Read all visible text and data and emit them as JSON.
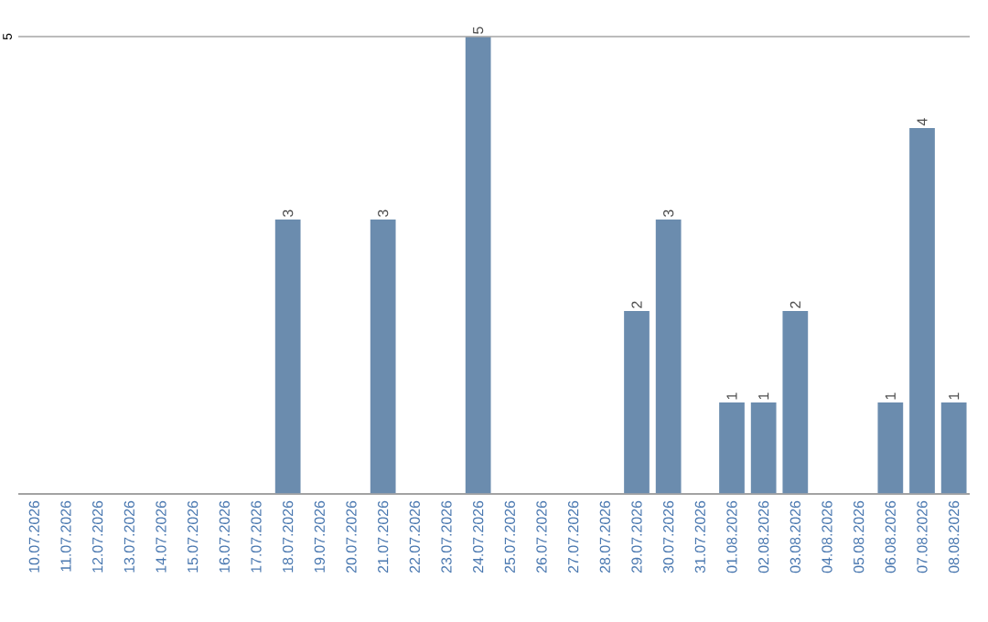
{
  "chart_data": {
    "type": "bar",
    "categories": [
      "10.07.2026",
      "11.07.2026",
      "12.07.2026",
      "13.07.2026",
      "14.07.2026",
      "15.07.2026",
      "16.07.2026",
      "17.07.2026",
      "18.07.2026",
      "19.07.2026",
      "20.07.2026",
      "21.07.2026",
      "22.07.2026",
      "23.07.2026",
      "24.07.2026",
      "25.07.2026",
      "26.07.2026",
      "27.07.2026",
      "28.07.2026",
      "29.07.2026",
      "30.07.2026",
      "31.07.2026",
      "01.08.2026",
      "02.08.2026",
      "03.08.2026",
      "04.08.2026",
      "05.08.2026",
      "06.08.2026",
      "07.08.2026",
      "08.08.2026"
    ],
    "values": [
      0,
      0,
      0,
      0,
      0,
      0,
      0,
      0,
      3,
      0,
      0,
      3,
      0,
      0,
      5,
      0,
      0,
      0,
      0,
      2,
      3,
      0,
      1,
      1,
      2,
      0,
      0,
      1,
      4,
      1
    ],
    "value_labels": [
      null,
      null,
      null,
      null,
      null,
      null,
      null,
      null,
      "3",
      null,
      null,
      "3",
      null,
      null,
      "5",
      null,
      null,
      null,
      null,
      "2",
      "3",
      null,
      "1",
      "1",
      "2",
      null,
      null,
      "1",
      "4",
      "1"
    ],
    "color": "#6b8cae",
    "ylim": [
      0,
      5
    ],
    "yticks": [
      {
        "value": 0,
        "label": null
      },
      5
    ],
    "grid": "y"
  }
}
